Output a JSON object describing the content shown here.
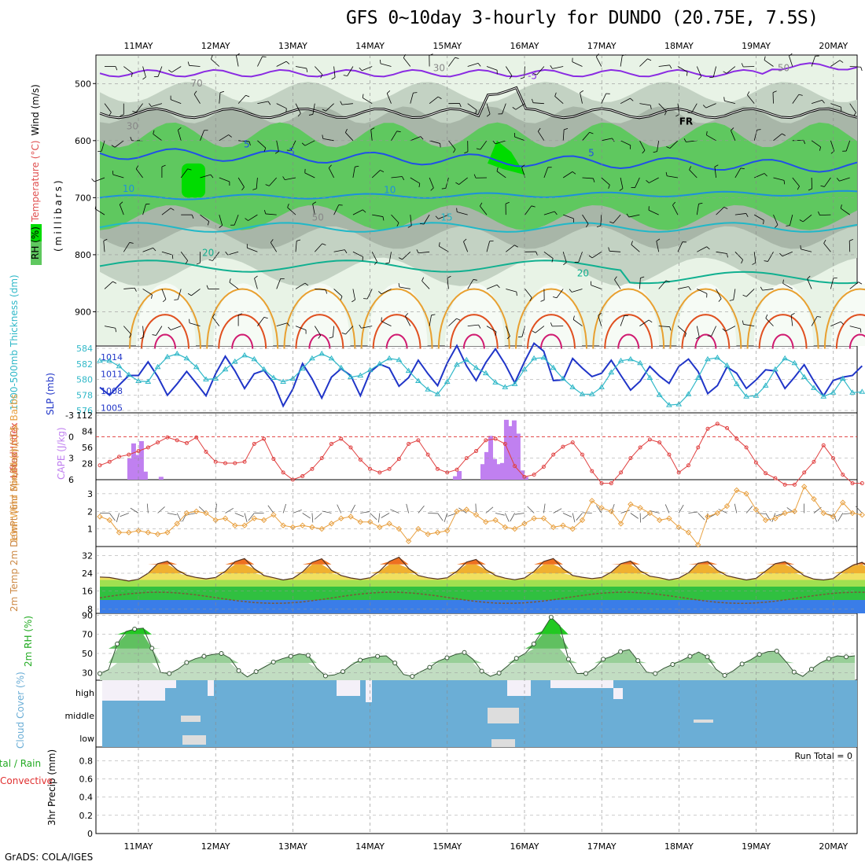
{
  "title": "GFS 0~10day 3-hourly for DUNDO (20.75E, 7.5S)",
  "credit": "GrADS: COLA/IGES",
  "colors": {
    "rh_light": "#e8f3e6",
    "rh_mid": "#c3d2c3",
    "rh_dark": "#a8b6a8",
    "rh_green": "#5fc85f",
    "rh_bright": "#00dc00",
    "temp_purple": "#8a2be2",
    "temp_blue": "#2050e8",
    "temp_lightblue": "#1e90dc",
    "temp_cyan": "#20b8c8",
    "temp_teal": "#10b090",
    "orange": "#e8a030",
    "red": "#e05020",
    "magenta": "#d01a70",
    "slp": "#2035c8",
    "thick": "#30b8c8",
    "lifted": "#e04040",
    "cape": "#c080f0",
    "wind10": "#e8a040",
    "cloud": "#6baed6"
  },
  "chart_data": [
    {
      "name": "upper-air cross-section",
      "type": "heatmap",
      "ylabel_parts": [
        "RH (%)",
        "Temperature (°C)",
        "Wind (m/s)"
      ],
      "yunit": "(millibars)",
      "ylim": [
        960,
        450
      ],
      "ytick_values": [
        500,
        600,
        700,
        800,
        900
      ],
      "ytick_labels": [
        "500",
        "600",
        "700",
        "800",
        "900"
      ],
      "contour_labels": [
        {
          "text": "-5",
          "x": 5.65,
          "p": 492,
          "series": "temp_purple"
        },
        {
          "text": "FR",
          "x": 7.65,
          "p": 572,
          "series": "freeze"
        },
        {
          "text": "5",
          "x": 1.9,
          "p": 612,
          "series": "temp_blue"
        },
        {
          "text": "5",
          "x": 6.45,
          "p": 627,
          "series": "temp_blue"
        },
        {
          "text": "-5",
          "x": 2.45,
          "p": 625,
          "series": "temp_blue"
        },
        {
          "text": "10",
          "x": 0.3,
          "p": 690,
          "series": "temp_lightblue"
        },
        {
          "text": "10",
          "x": 3.75,
          "p": 692,
          "series": "temp_lightblue"
        },
        {
          "text": "15",
          "x": 4.5,
          "p": 740,
          "series": "temp_cyan"
        },
        {
          "text": "20",
          "x": 1.35,
          "p": 802,
          "series": "temp_teal"
        },
        {
          "text": "20",
          "x": 6.3,
          "p": 838,
          "series": "temp_teal"
        },
        {
          "text": "30",
          "x": 4.4,
          "p": 478,
          "series": "rh"
        },
        {
          "text": "70",
          "x": 1.2,
          "p": 505,
          "series": "rh"
        },
        {
          "text": "30",
          "x": 0.35,
          "p": 580,
          "series": "rh"
        },
        {
          "text": "50",
          "x": 2.8,
          "p": 740,
          "series": "rh"
        },
        {
          "text": "50",
          "x": 8.95,
          "p": 478,
          "series": "rh"
        }
      ]
    },
    {
      "name": "slp-thickness",
      "type": "line",
      "ylabel_left": "1000-500mb Thickness (dm)",
      "ylabel_right": "SLP (mb)",
      "left_ticks": [
        "584",
        "582",
        "580",
        "578",
        "576"
      ],
      "right_ticks": [
        "1014",
        "1011",
        "1008",
        "1005"
      ],
      "ylim_left": [
        576,
        584
      ],
      "ylim_right": [
        1004.5,
        1015.5
      ],
      "series": [
        {
          "key": "slp",
          "values": [
            1008.6,
            1007.2,
            1009.0,
            1010.7,
            1010.7,
            1013.1,
            1010.5,
            1007.2,
            1009.2,
            1011.4,
            1009.3,
            1007.1,
            1011.0,
            1014.1,
            1011.5,
            1008.4,
            1011.0,
            1011.6,
            1009.4,
            1005.3,
            1008.3,
            1012.8,
            1010.1,
            1006.7,
            1010.4,
            1011.9,
            1010.7,
            1007.1,
            1011.3,
            1012.7,
            1012.0,
            1008.8,
            1010.3,
            1013.4,
            1011.0,
            1008.9,
            1012.9,
            1016.0,
            1012.4,
            1009.8,
            1013.0,
            1015.4,
            1012.7,
            1009.4,
            1013.1,
            1016.4,
            1015.0,
            1009.8,
            1009.9,
            1013.7,
            1012.0,
            1010.5,
            1011.1,
            1013.4,
            1010.7,
            1008.1,
            1009.7,
            1012.3,
            1010.6,
            1009.3,
            1012.3,
            1013.6,
            1011.4,
            1007.5,
            1008.9,
            1012.2,
            1011.1,
            1008.4,
            1009.9,
            1011.7,
            1011.5,
            1008.4,
            1010.4,
            1012.6,
            1009.7,
            1007.1,
            1009.8,
            1010.4,
            1010.7,
            1012.4
          ]
        },
        {
          "key": "thick",
          "values": [
            582.4,
            582.4,
            581.7,
            580.6,
            579.8,
            579.7,
            581.6,
            582.9,
            583.3,
            582.7,
            581.6,
            580.0,
            580.1,
            581.3,
            582.3,
            583.1,
            582.6,
            581.3,
            580.2,
            579.7,
            580.1,
            581.4,
            582.7,
            583.3,
            582.7,
            581.5,
            580.3,
            580.5,
            581.2,
            582.0,
            582.7,
            582.5,
            581.1,
            579.8,
            578.7,
            578.1,
            579.7,
            581.9,
            582.5,
            581.5,
            580.8,
            579.6,
            579.0,
            579.4,
            581.3,
            582.7,
            582.8,
            581.5,
            580.1,
            579.0,
            578.1,
            578.1,
            579.0,
            580.9,
            582.4,
            582.6,
            582.1,
            580.2,
            578.0,
            576.7,
            576.8,
            578.1,
            580.2,
            582.6,
            582.8,
            581.8,
            579.4,
            577.8,
            577.9,
            579.2,
            581.3,
            582.7,
            582.1,
            580.3,
            578.9,
            577.8,
            578.3,
            580.1,
            578.3,
            578.4
          ]
        }
      ]
    },
    {
      "name": "cape-lifted",
      "type": "bar",
      "ylabel_left": "Lifted Index",
      "ylabel_right": "CAPE (J/kg)",
      "left_ticks": [
        "-3",
        "0",
        "3",
        "6"
      ],
      "right_ticks": [
        "112",
        "84",
        "56",
        "28"
      ],
      "ylim_right": [
        0,
        112
      ],
      "cape": [
        0,
        0,
        0,
        0,
        0,
        0,
        0,
        37,
        63,
        43,
        67,
        14,
        0,
        0,
        0,
        5,
        0,
        0,
        0,
        0,
        0,
        0,
        0,
        0,
        0,
        0,
        0,
        0,
        0,
        0,
        0,
        0,
        0,
        0,
        0,
        0,
        0,
        0,
        0,
        0,
        0,
        0,
        0,
        0,
        0,
        0,
        0,
        0,
        0,
        0,
        0,
        0,
        0,
        0,
        0,
        0,
        0,
        0,
        0,
        0,
        0,
        0,
        0,
        0,
        0,
        0,
        0,
        0,
        0,
        0,
        0,
        0,
        0,
        0,
        0,
        0,
        0,
        0,
        0,
        0,
        0,
        0,
        0,
        0,
        0,
        0,
        0,
        0,
        0,
        0,
        6,
        15,
        0,
        0,
        0,
        0,
        0,
        27,
        48,
        76,
        36,
        27,
        29,
        104,
        93,
        103,
        80,
        16,
        5,
        0,
        0,
        0,
        0,
        0,
        0,
        0,
        0,
        0,
        0,
        0,
        0,
        0,
        0,
        0,
        0,
        0,
        0,
        0,
        0,
        0,
        0,
        0,
        0,
        0,
        0,
        0,
        0,
        0,
        0,
        0,
        0,
        0,
        0,
        0,
        0,
        0,
        0,
        0,
        0,
        0,
        0,
        0,
        0,
        0,
        0,
        0,
        0,
        0,
        0,
        0,
        0,
        0,
        0,
        0,
        0,
        0,
        0,
        0,
        0,
        0,
        0,
        0,
        0,
        0,
        0,
        0,
        0,
        0,
        0,
        0,
        0,
        0,
        0,
        0,
        0,
        0,
        0,
        0,
        0
      ],
      "lifted_index": [
        4.0,
        3.5,
        2.8,
        2.5,
        2.0,
        1.5,
        0.8,
        0.1,
        0.5,
        0.9,
        0.1,
        2.1,
        3.5,
        3.7,
        3.7,
        3.5,
        1.0,
        0.3,
        3.1,
        5.0,
        6.0,
        5.5,
        4.5,
        3.0,
        1.0,
        0.3,
        1.5,
        3.2,
        4.5,
        5.0,
        4.5,
        3.1,
        1.0,
        0.5,
        2.5,
        4.5,
        5.0,
        4.6,
        3.0,
        2.0,
        0.5,
        0.3,
        1.0,
        4.1,
        5.6,
        5.3,
        4.2,
        2.5,
        1.4,
        0.8,
        2.5,
        4.8,
        6.5,
        6.5,
        5.0,
        3.0,
        1.5,
        0.4,
        0.8,
        2.5,
        5.0,
        4.0,
        1.5,
        -1.1,
        -1.8,
        -1.2,
        0.3,
        1.5,
        3.6,
        5.1,
        5.8,
        6.7,
        6.7,
        5.0,
        3.5,
        1.2,
        3.0,
        5.3,
        6.5,
        6.5
      ]
    },
    {
      "name": "10m wind",
      "type": "line",
      "ylabel": "10m Wind Speed (m/s) & Barbs",
      "ytick_labels": [
        "1",
        "2",
        "3"
      ],
      "ylim": [
        0,
        3.8
      ],
      "values": [
        1.7,
        1.5,
        0.8,
        0.8,
        0.9,
        0.8,
        0.7,
        0.8,
        1.3,
        1.9,
        2.0,
        1.9,
        1.5,
        1.6,
        1.2,
        1.2,
        1.6,
        1.5,
        1.8,
        1.2,
        1.1,
        1.2,
        1.1,
        1.0,
        1.3,
        1.6,
        1.7,
        1.4,
        1.4,
        1.1,
        1.3,
        1.0,
        0.3,
        1.0,
        0.7,
        0.8,
        0.9,
        2.0,
        2.1,
        1.8,
        1.4,
        1.5,
        1.1,
        1.0,
        1.3,
        1.6,
        1.6,
        1.1,
        1.2,
        1.0,
        1.5,
        2.6,
        2.2,
        2.0,
        1.3,
        2.4,
        2.2,
        1.9,
        1.5,
        1.6,
        1.1,
        0.8,
        0.1,
        1.7,
        1.9,
        2.3,
        3.2,
        3.0,
        2.1,
        1.5,
        1.6,
        1.9,
        2.0,
        3.4,
        2.7,
        1.9,
        1.7,
        2.5,
        1.9,
        1.8
      ]
    },
    {
      "name": "2m temperature",
      "type": "area",
      "ylabel": "2m Temp 2m DewPt (6hr Min/Max) (°C)",
      "ytick_labels": [
        "32",
        "24",
        "16",
        "8"
      ],
      "ylim": [
        6,
        36
      ],
      "temp": [
        22.3,
        22.1,
        21.3,
        20.5,
        21.3,
        24.0,
        28.3,
        29.4,
        25.5,
        23.1,
        22.1,
        21.5,
        22.1,
        24.9,
        29.2,
        30.6,
        26.0,
        23.0,
        22.0,
        21.0,
        21.7,
        24.6,
        28.9,
        30.5,
        25.3,
        23.0,
        21.9,
        21.2,
        22.0,
        25.0,
        29.3,
        31.2,
        26.2,
        23.0,
        22.0,
        21.4,
        22.0,
        24.9,
        29.0,
        30.2,
        25.7,
        23.0,
        21.8,
        21.1,
        21.9,
        24.8,
        29.3,
        30.6,
        26.0,
        23.0,
        22.2,
        21.6,
        22.1,
        24.5,
        28.3,
        29.5,
        25.1,
        22.7,
        22.0,
        21.0,
        21.8,
        24.2,
        28.5,
        29.3,
        25.3,
        22.9,
        21.9,
        21.0,
        21.7,
        25.0,
        28.3,
        29.2,
        26.0,
        22.9,
        21.4,
        21.0,
        21.6,
        24.9,
        27.5,
        28.9,
        25.5,
        23.0
      ]
    },
    {
      "name": "2m RH",
      "type": "area",
      "ylabel": "2m RH (%)",
      "ytick_labels": [
        "30",
        "50",
        "70",
        "90"
      ],
      "ylim": [
        22,
        92
      ],
      "values": [
        29.0,
        33.0,
        60.0,
        73.0,
        75.5,
        76.5,
        55.5,
        30.0,
        29.0,
        33.5,
        40.5,
        44.5,
        47.0,
        49.0,
        50.0,
        45.0,
        32.0,
        25.5,
        31.0,
        36.0,
        41.0,
        44.5,
        47.0,
        49.5,
        48.0,
        34.5,
        26.5,
        27.5,
        31.0,
        38.0,
        43.0,
        45.5,
        47.0,
        47.5,
        40.0,
        28.0,
        26.0,
        31.0,
        35.5,
        42.0,
        45.5,
        49.0,
        51.0,
        44.0,
        31.5,
        26.0,
        29.5,
        37.0,
        45.0,
        50.0,
        60.0,
        73.5,
        88.0,
        79.0,
        44.0,
        29.0,
        29.0,
        34.5,
        44.0,
        47.0,
        52.0,
        54.0,
        42.5,
        30.5,
        29.0,
        34.5,
        38.5,
        42.5,
        47.0,
        51.5,
        46.5,
        33.5,
        27.0,
        32.0,
        39.0,
        43.5,
        49.0,
        52.0,
        52.5,
        42.0,
        30.5,
        26.0,
        33.5,
        40.0,
        44.5,
        47.5,
        46.5,
        47.5
      ]
    },
    {
      "name": "cloud cover",
      "type": "heatmap",
      "ylabel": "Cloud Cover (%)",
      "rows": [
        "high",
        "middle",
        "low"
      ]
    },
    {
      "name": "precipitation",
      "type": "bar",
      "ylabel": "3hr Precip (mm)",
      "legend": [
        "Total / Rain",
        "Convective"
      ],
      "ytick_labels": [
        "0",
        "0.2",
        "0.4",
        "0.6",
        "0.8"
      ],
      "ylim": [
        0,
        0.95
      ],
      "values": [],
      "annotation": "Run Total = 0"
    }
  ],
  "x_axis": {
    "dates": [
      "11MAY",
      "12MAY",
      "13MAY",
      "14MAY",
      "15MAY",
      "16MAY",
      "17MAY",
      "18MAY",
      "19MAY",
      "20MAY"
    ],
    "start": "10MAY 15Z",
    "step_hours": 3
  }
}
